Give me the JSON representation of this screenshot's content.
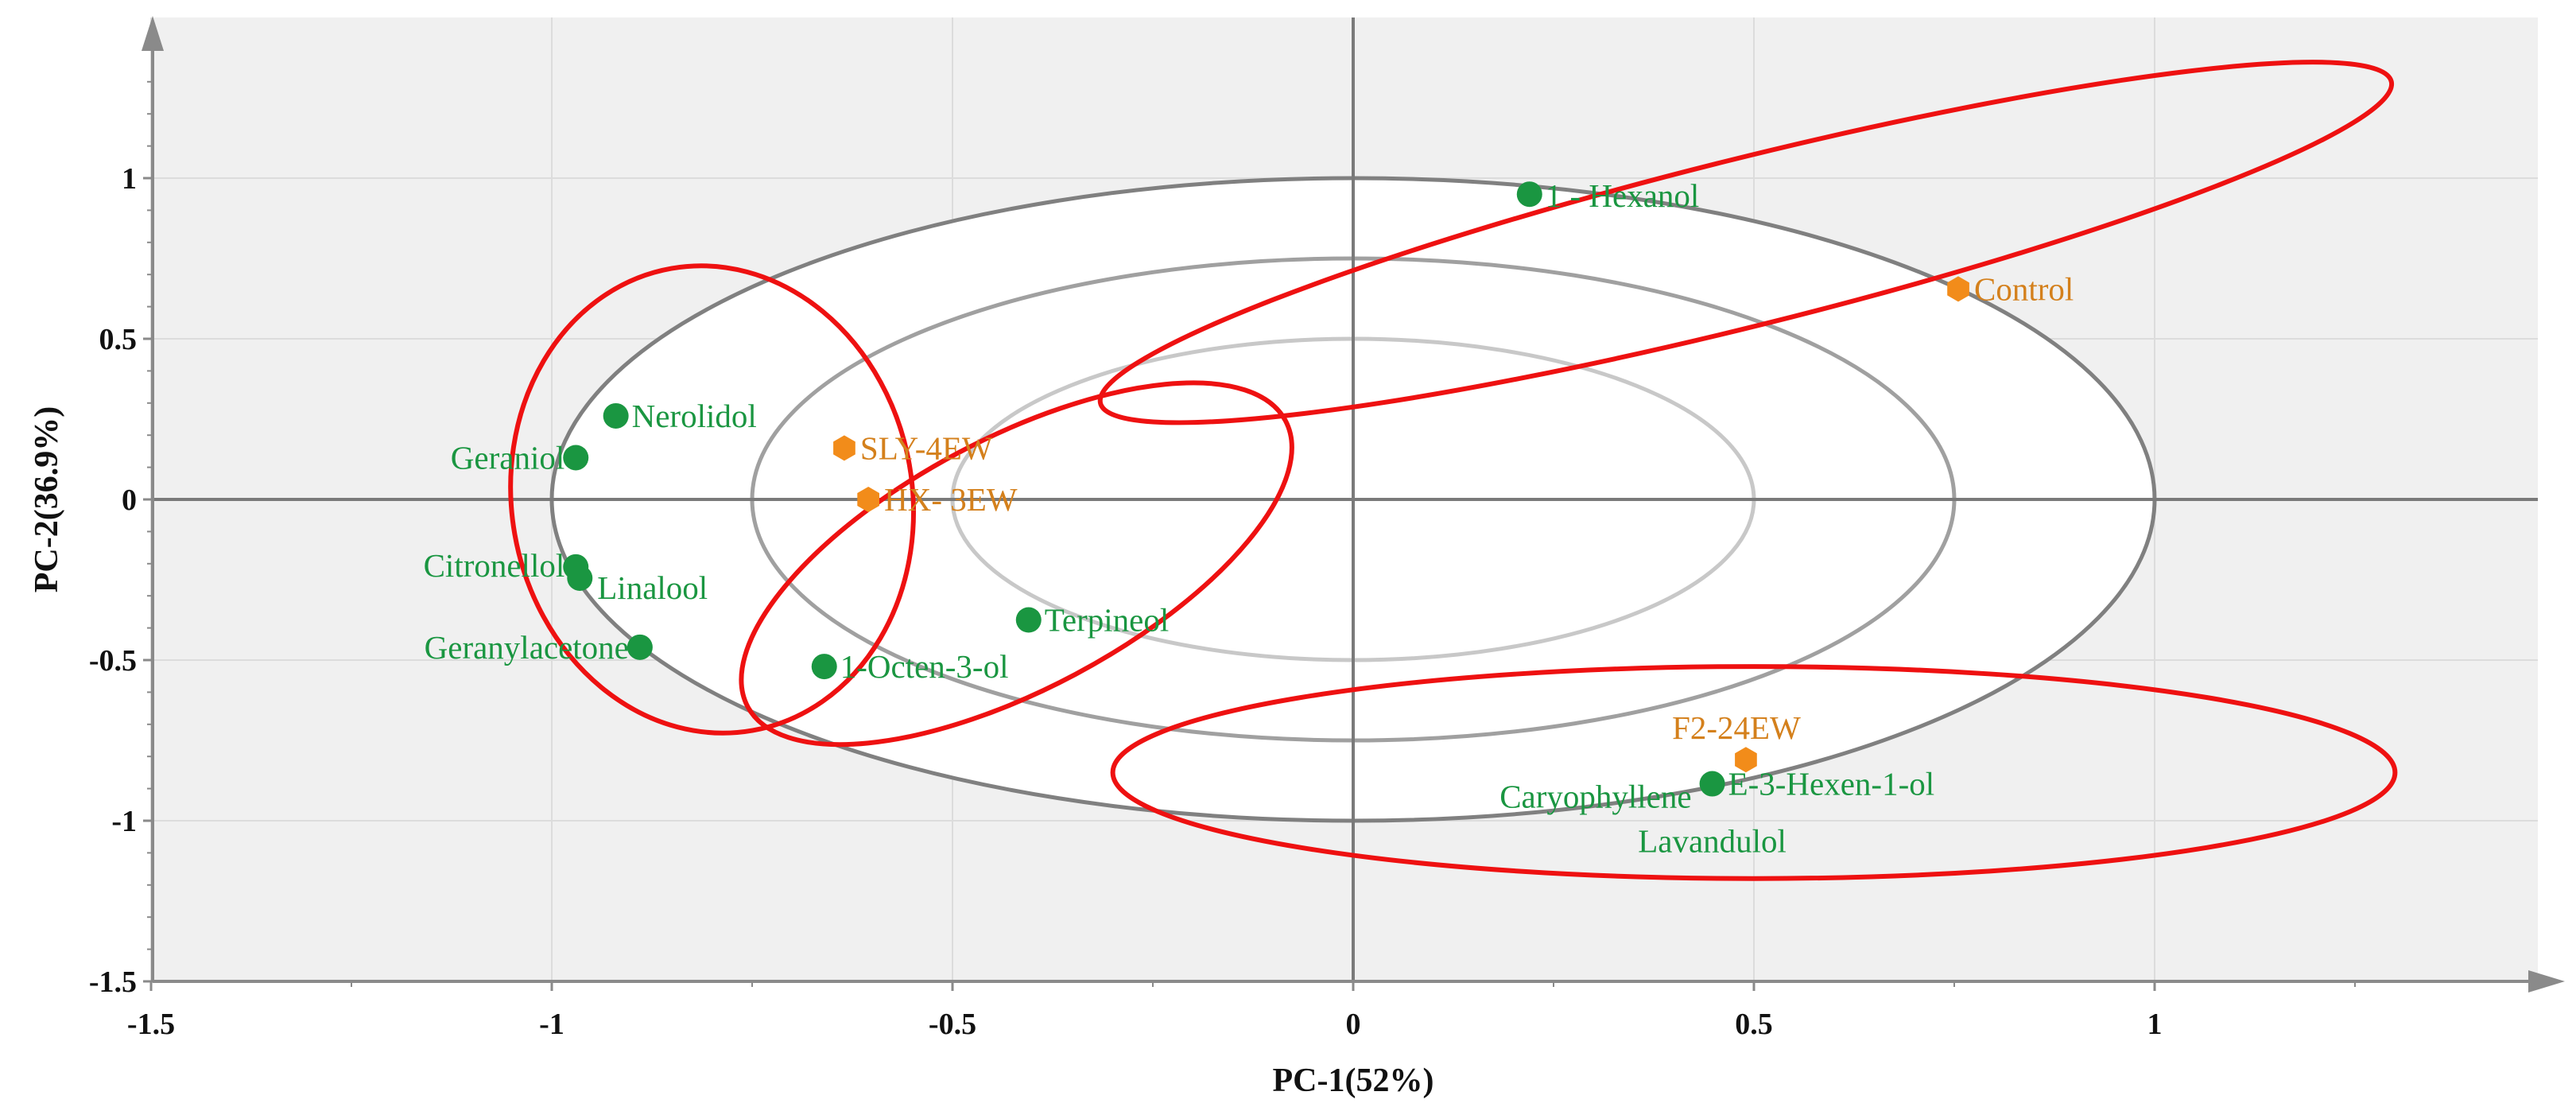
{
  "chart_data": {
    "type": "scatter",
    "title": "",
    "xlabel": "PC-1(52%)",
    "ylabel": "PC-2(36.9%)",
    "xlim": [
      -1.5,
      1.5
    ],
    "ylim": [
      -1.5,
      1.5
    ],
    "xticks": [
      -1.5,
      -1,
      -0.5,
      0,
      0.5,
      1
    ],
    "xtick_labels": [
      "-1.5",
      "-1",
      "-0.5",
      "0",
      "0.5",
      "1"
    ],
    "yticks": [
      -1.5,
      -1,
      -0.5,
      0,
      0.5,
      1
    ],
    "ytick_labels": [
      "-1.5",
      "-1",
      "-0.5",
      "0",
      "0.5",
      "1"
    ],
    "grid": true,
    "colors": {
      "variable": "#1a9641",
      "sample": "#f28c1a",
      "sample_text": "#d4801c",
      "cluster": "#ee1111",
      "ellipse_outer": "#808080",
      "ellipse_mid": "#a0a0a0",
      "ellipse_inner": "#c8c8c8",
      "plot_bg": "#f0f0f0"
    },
    "reference_ellipses": [
      {
        "name": "outer",
        "rx": 1.0,
        "ry": 1.0
      },
      {
        "name": "middle",
        "rx": 0.75,
        "ry": 0.75
      },
      {
        "name": "inner",
        "rx": 0.5,
        "ry": 0.5
      }
    ],
    "series": [
      {
        "name": "variables",
        "marker": "circle",
        "points": [
          {
            "label": "1 - Hexanol",
            "x": 0.22,
            "y": 0.95
          },
          {
            "label": "Nerolidol",
            "x": -0.92,
            "y": 0.26
          },
          {
            "label": "Geraniol",
            "x": -0.97,
            "y": 0.13
          },
          {
            "label": "Citronellol",
            "x": -0.97,
            "y": -0.21
          },
          {
            "label": "Linalool",
            "x": -0.965,
            "y": -0.245
          },
          {
            "label": "Geranylacetone",
            "x": -0.89,
            "y": -0.46
          },
          {
            "label": "Terpineol",
            "x": -0.405,
            "y": -0.375
          },
          {
            "label": "1-Octen-3-ol",
            "x": -0.66,
            "y": -0.52
          },
          {
            "label": "Caryophyllene",
            "x": 0.448,
            "y": -0.885
          },
          {
            "label": "E-3-Hexen-1-ol",
            "x": 0.448,
            "y": -0.885
          },
          {
            "label": "Lavandulol",
            "x": 0.448,
            "y": -0.885
          }
        ]
      },
      {
        "name": "samples",
        "marker": "hexagon",
        "points": [
          {
            "label": "Control",
            "x": 0.755,
            "y": 0.655
          },
          {
            "label": "SLY-4EW",
            "x": -0.635,
            "y": 0.16
          },
          {
            "label": "HX- 3EW",
            "x": -0.605,
            "y": 0.0
          },
          {
            "label": "F2-24EW",
            "x": 0.49,
            "y": -0.81
          }
        ]
      }
    ],
    "annotations": [
      {
        "name": "cluster-hexanol-control",
        "cx": 0.49,
        "cy": 0.8,
        "rx": 0.83,
        "ry": 0.26,
        "rotation_deg": 14
      },
      {
        "name": "cluster-nerolidol-geranylacetone",
        "cx": -0.8,
        "cy": 0.0,
        "rx": 0.25,
        "ry": 0.73,
        "rotation_deg": 10
      },
      {
        "name": "cluster-sly-terpineol",
        "cx": -0.42,
        "cy": -0.2,
        "rx": 0.38,
        "ry": 0.39,
        "rotation_deg": 28
      },
      {
        "name": "cluster-f2-caryophyllene",
        "cx": 0.5,
        "cy": -0.85,
        "rx": 0.8,
        "ry": 0.33,
        "rotation_deg": 0
      }
    ]
  }
}
